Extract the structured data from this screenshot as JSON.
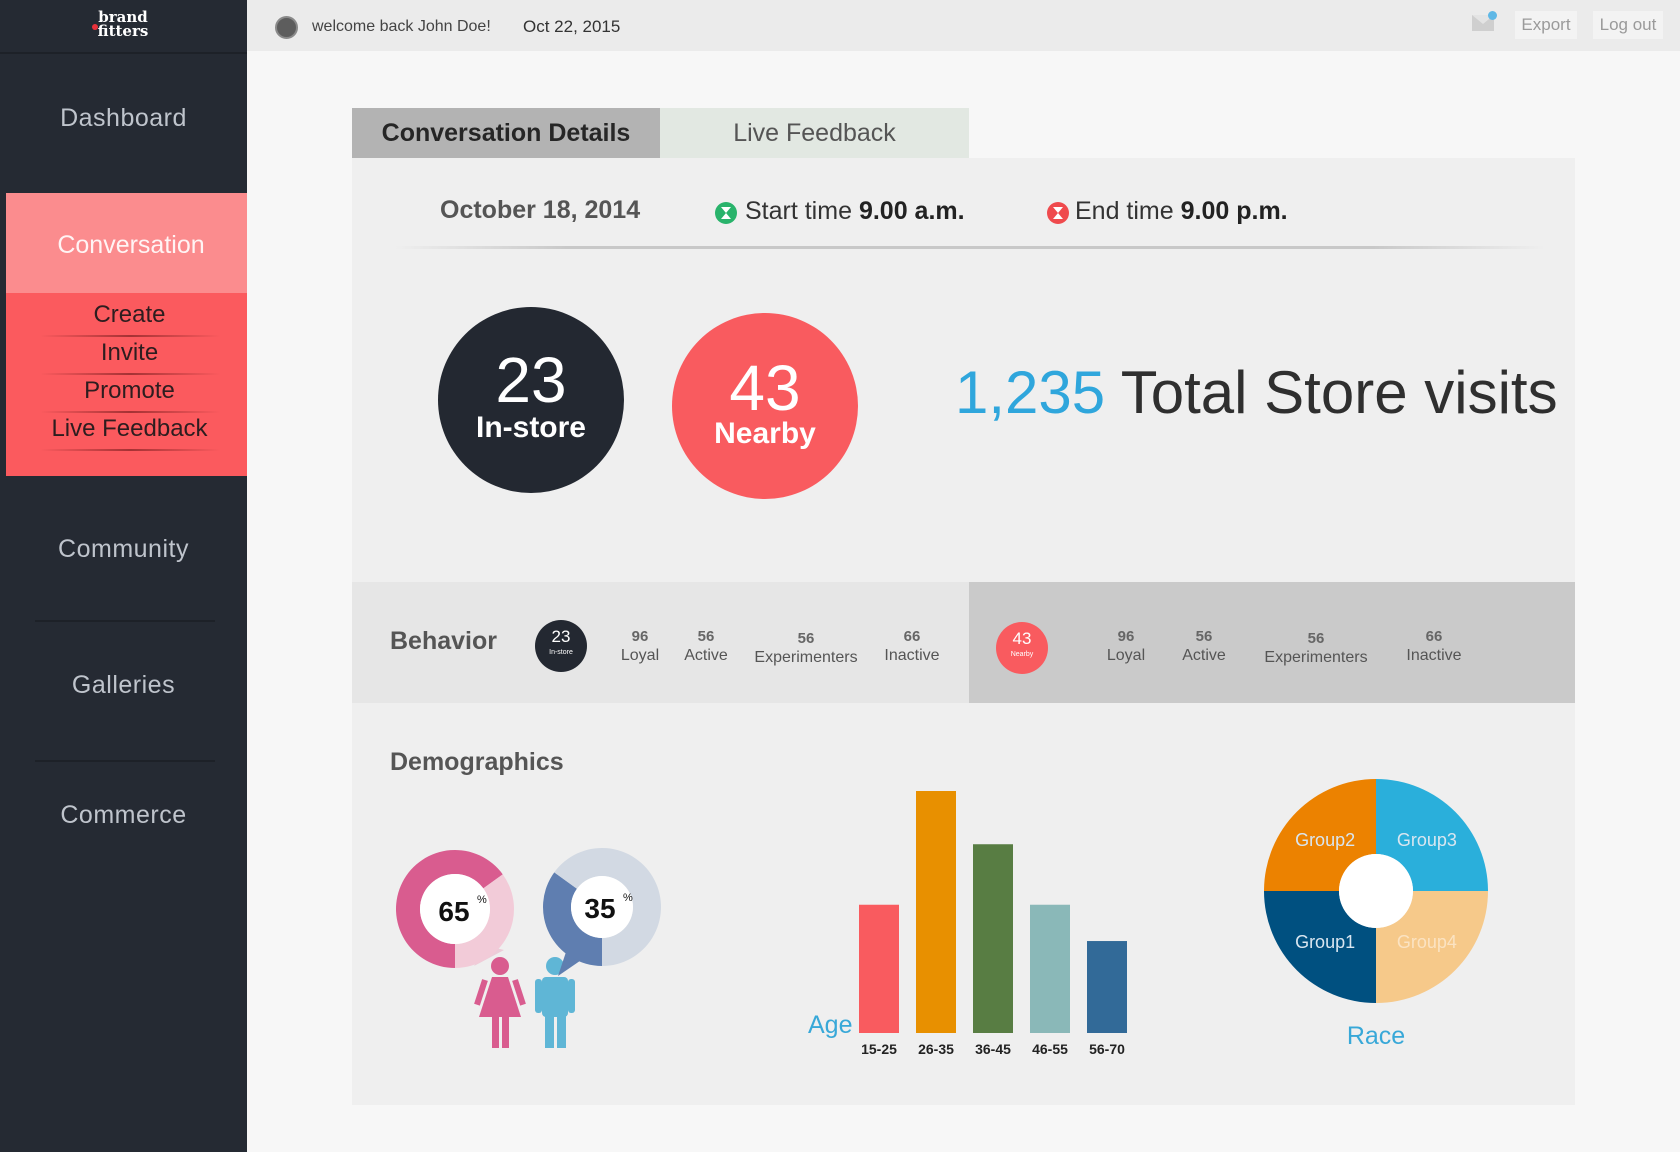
{
  "app": {
    "logo_line1": "brand",
    "logo_line2": "fitters"
  },
  "header": {
    "welcome": "welcome back John Doe!",
    "date": "Oct 22, 2015",
    "export_label": "Export",
    "logout_label": "Log out",
    "mail_icon": "mail-icon"
  },
  "sidebar": {
    "dashboard": "Dashboard",
    "conversation": "Conversation",
    "sub": [
      "Create",
      "Invite",
      "Promote",
      "Live Feedback"
    ],
    "community": "Community",
    "galleries": "Galleries",
    "commerce": "Commerce"
  },
  "tabs": {
    "active": "Conversation Details",
    "inactive": "Live Feedback"
  },
  "details": {
    "date": "October 18, 2014",
    "start_label": "Start time",
    "start_value": "9.00 a.m.",
    "end_label": "End time",
    "end_value": "9.00 p.m.",
    "start_icon": "hourglass-green-icon",
    "end_icon": "hourglass-red-icon"
  },
  "summary": {
    "instore_value": "23",
    "instore_label": "In-store",
    "nearby_value": "43",
    "nearby_label": "Nearby",
    "total_value": "1,235",
    "total_label": "Total Store visits"
  },
  "behavior": {
    "title": "Behavior",
    "instore": {
      "value": "23",
      "label": "In-store",
      "stats": [
        {
          "value": "96",
          "label": "Loyal"
        },
        {
          "value": "56",
          "label": "Active"
        },
        {
          "value": "56",
          "label": "Experimenters"
        },
        {
          "value": "66",
          "label": "Inactive"
        }
      ]
    },
    "nearby": {
      "value": "43",
      "label": "Nearby",
      "stats": [
        {
          "value": "96",
          "label": "Loyal"
        },
        {
          "value": "56",
          "label": "Active"
        },
        {
          "value": "56",
          "label": "Experimenters"
        },
        {
          "value": "66",
          "label": "Inactive"
        }
      ]
    }
  },
  "demographics": {
    "title": "Demographics",
    "female_icon": "female-icon",
    "male_icon": "male-icon"
  },
  "colors": {
    "sidebar": "#252a33",
    "accent_red": "#f95b5f",
    "accent_blue": "#2fa6dc",
    "dark_circle": "#232831",
    "female": "#d95c8f",
    "male": "#5ea0d0"
  },
  "chart_data": [
    {
      "type": "pie",
      "labels": [
        "65",
        "%"
      ],
      "values": [
        65,
        35
      ],
      "colors": [
        "#d95c8f",
        "#f2cbd8"
      ]
    },
    {
      "type": "pie",
      "labels": [
        "35",
        "%"
      ],
      "values": [
        35,
        65
      ],
      "colors": [
        "#5f7eb0",
        "#d2d9e3"
      ]
    },
    {
      "type": "bar",
      "xlabel": "Age",
      "categories": [
        "15-25",
        "26-35",
        "36-45",
        "46-55",
        "56-70"
      ],
      "values": [
        53,
        100,
        78,
        53,
        38
      ],
      "colors": [
        "#f95b5f",
        "#e89000",
        "#587d43",
        "#8ab8b8",
        "#326a98"
      ]
    },
    {
      "type": "pie",
      "xlabel": "Race",
      "labels": [
        "Group3",
        "Group4",
        "Group1",
        "Group2"
      ],
      "values": [
        25,
        25,
        25,
        25
      ],
      "colors": [
        "#2aafdb",
        "#f6c98a",
        "#005080",
        "#ec8200"
      ]
    }
  ]
}
